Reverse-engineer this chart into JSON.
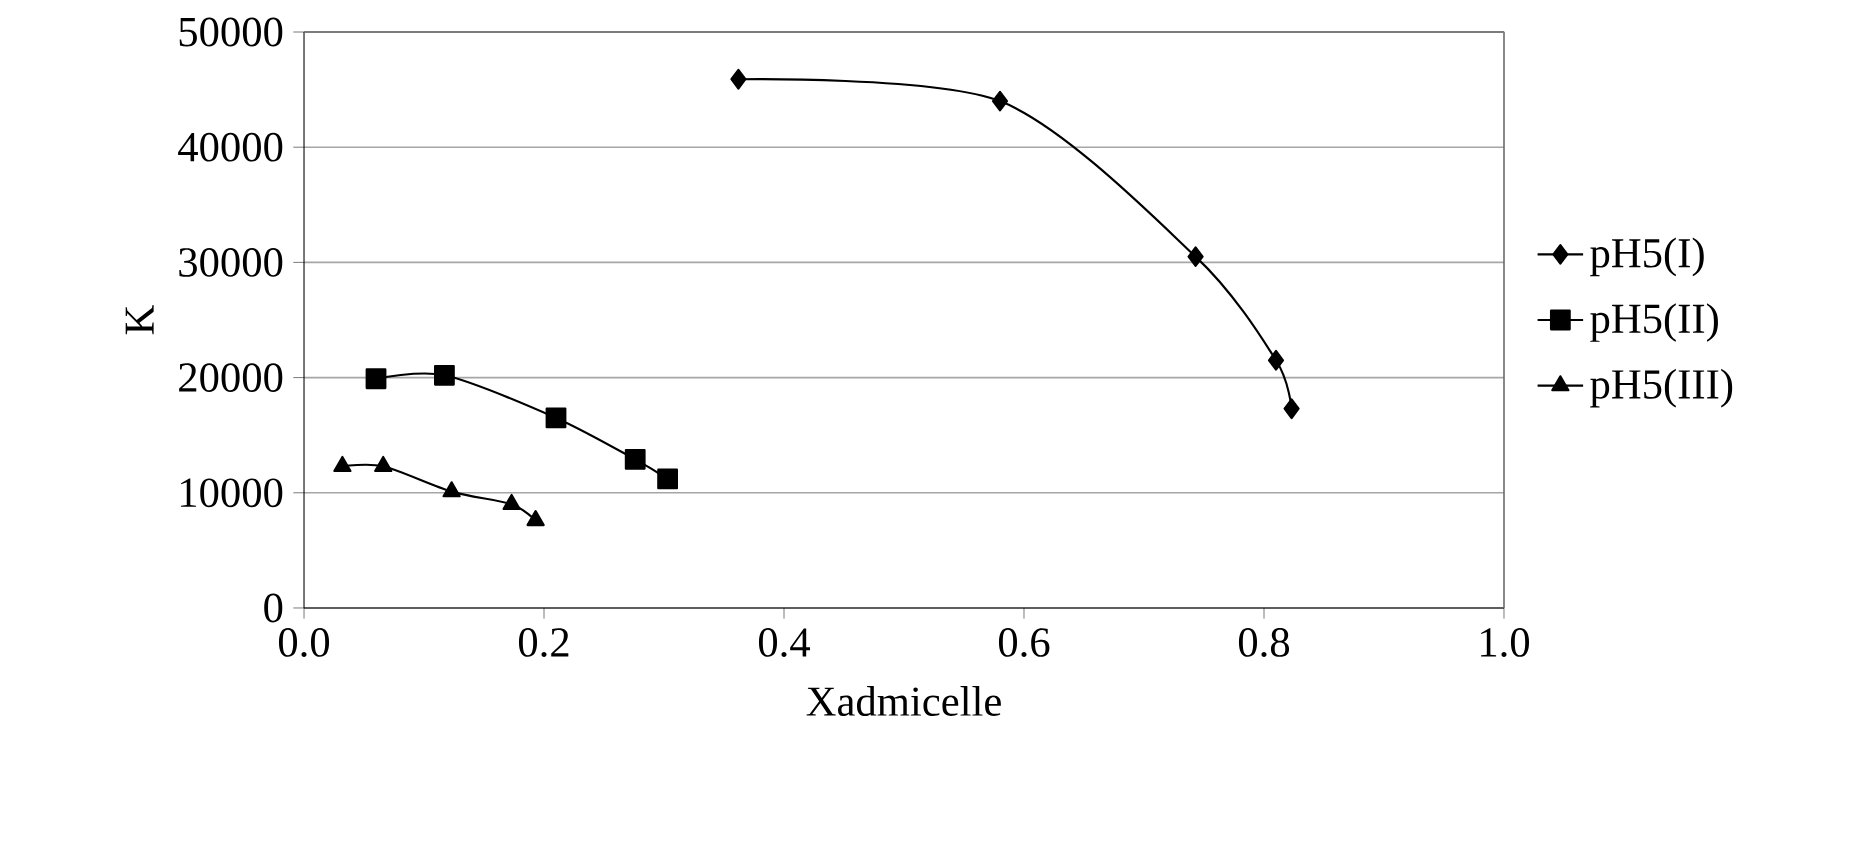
{
  "chart_data": {
    "type": "line",
    "xlabel": "Xadmicelle",
    "ylabel": "K",
    "xlim": [
      0,
      1
    ],
    "xticks": [
      {
        "value": 0,
        "label": "0.0"
      },
      {
        "value": 0.2,
        "label": "0.2"
      },
      {
        "value": 0.4,
        "label": "0.4"
      },
      {
        "value": 0.6,
        "label": "0.6"
      },
      {
        "value": 0.8,
        "label": "0.8"
      },
      {
        "value": 1,
        "label": "1.0"
      }
    ],
    "ylim": [
      0,
      50000
    ],
    "yticks": [
      0,
      10000,
      20000,
      30000,
      40000,
      50000
    ],
    "grid": "y",
    "legend": "right",
    "series": [
      {
        "name": "pH5(I)",
        "color": "#000000",
        "marker": "diamond",
        "x": [
          0.362,
          0.58,
          0.743,
          0.81,
          0.823
        ],
        "values": [
          45900,
          44000,
          30500,
          21500,
          17300
        ]
      },
      {
        "name": "pH5(II)",
        "color": "#000000",
        "marker": "square",
        "x": [
          0.06,
          0.117,
          0.21,
          0.276,
          0.303
        ],
        "values": [
          19900,
          20200,
          16500,
          12900,
          11200
        ]
      },
      {
        "name": "pH5(III)",
        "color": "#000000",
        "marker": "triangle",
        "x": [
          0.032,
          0.066,
          0.123,
          0.173,
          0.193
        ],
        "values": [
          12300,
          12300,
          10100,
          9000,
          7600
        ]
      }
    ]
  }
}
